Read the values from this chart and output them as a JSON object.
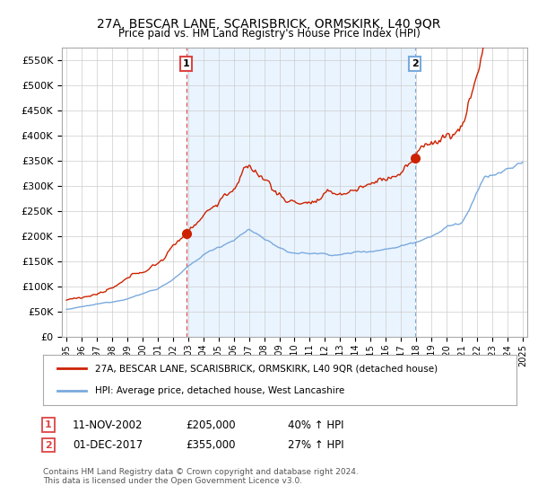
{
  "title": "27A, BESCAR LANE, SCARISBRICK, ORMSKIRK, L40 9QR",
  "subtitle": "Price paid vs. HM Land Registry's House Price Index (HPI)",
  "ylim": [
    0,
    575000
  ],
  "yticks": [
    0,
    50000,
    100000,
    150000,
    200000,
    250000,
    300000,
    350000,
    400000,
    450000,
    500000,
    550000
  ],
  "ytick_labels": [
    "£0",
    "£50K",
    "£100K",
    "£150K",
    "£200K",
    "£250K",
    "£300K",
    "£350K",
    "£400K",
    "£450K",
    "£500K",
    "£550K"
  ],
  "hpi_color": "#7aaadd",
  "price_color": "#cc2200",
  "vline1_color": "#dd4444",
  "vline2_color": "#7aaadd",
  "sale1_year": 2002.87,
  "sale1_price": 205000,
  "sale2_year": 2017.92,
  "sale2_price": 355000,
  "legend_property": "27A, BESCAR LANE, SCARISBRICK, ORMSKIRK, L40 9QR (detached house)",
  "legend_hpi": "HPI: Average price, detached house, West Lancashire",
  "annotation1_date": "11-NOV-2002",
  "annotation1_price": "£205,000",
  "annotation1_hpi": "40% ↑ HPI",
  "annotation2_date": "01-DEC-2017",
  "annotation2_price": "£355,000",
  "annotation2_hpi": "27% ↑ HPI",
  "footer": "Contains HM Land Registry data © Crown copyright and database right 2024.\nThis data is licensed under the Open Government Licence v3.0.",
  "background_color": "#ffffff",
  "fill_color": "#ddeeff",
  "grid_color": "#cccccc"
}
